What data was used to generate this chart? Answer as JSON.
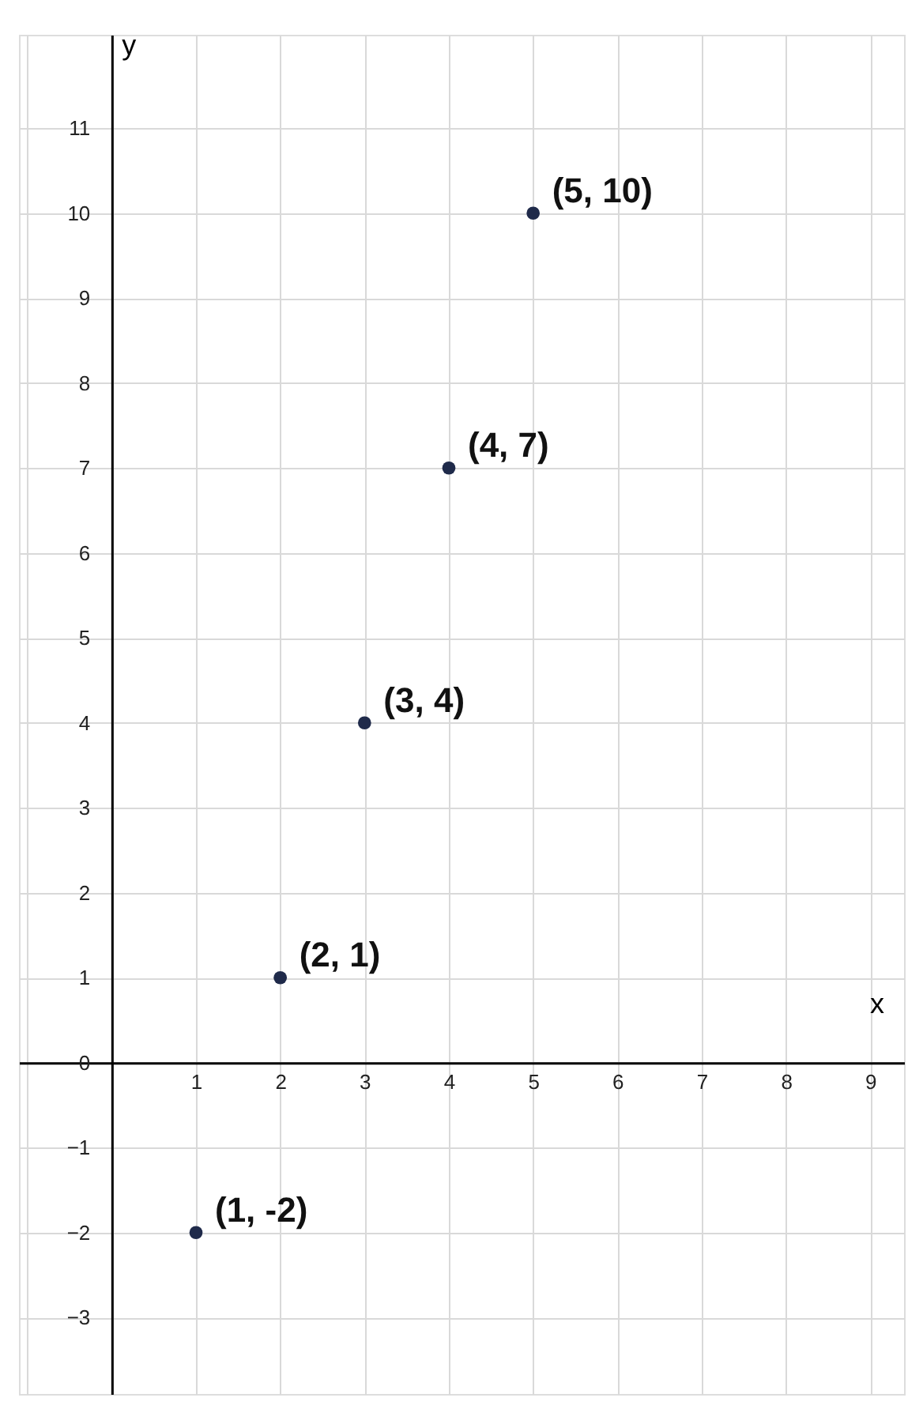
{
  "chart_data": {
    "type": "scatter",
    "xlabel": "x",
    "ylabel": "y",
    "x": [
      1,
      2,
      3,
      4,
      5
    ],
    "series": [
      {
        "color": "#1f2a4a",
        "values": [
          -2,
          1,
          4,
          7,
          10
        ]
      }
    ],
    "xlim": [
      -1.1,
      9.4
    ],
    "ylim": [
      -3.9,
      12.1
    ],
    "xticks": [
      {
        "value": -1,
        "label": null
      },
      {
        "value": 0,
        "label": null
      },
      1,
      2,
      3,
      4,
      5,
      6,
      7,
      8,
      9
    ],
    "yticks": [
      {
        "value": -3,
        "label": "−3"
      },
      {
        "value": -2,
        "label": "−2"
      },
      {
        "value": -1,
        "label": "−1"
      },
      0,
      1,
      2,
      3,
      4,
      5,
      6,
      7,
      8,
      9,
      10,
      11
    ],
    "grid": true,
    "marker": "circle",
    "annotations": [
      {
        "text": "(1, -2)",
        "x": 1,
        "y": -2
      },
      {
        "text": "(2, 1)",
        "x": 2,
        "y": 1
      },
      {
        "text": "(3, 4)",
        "x": 3,
        "y": 4
      },
      {
        "text": "(4, 7)",
        "x": 4,
        "y": 7
      },
      {
        "text": "(5, 10)",
        "x": 5,
        "y": 10
      }
    ]
  }
}
